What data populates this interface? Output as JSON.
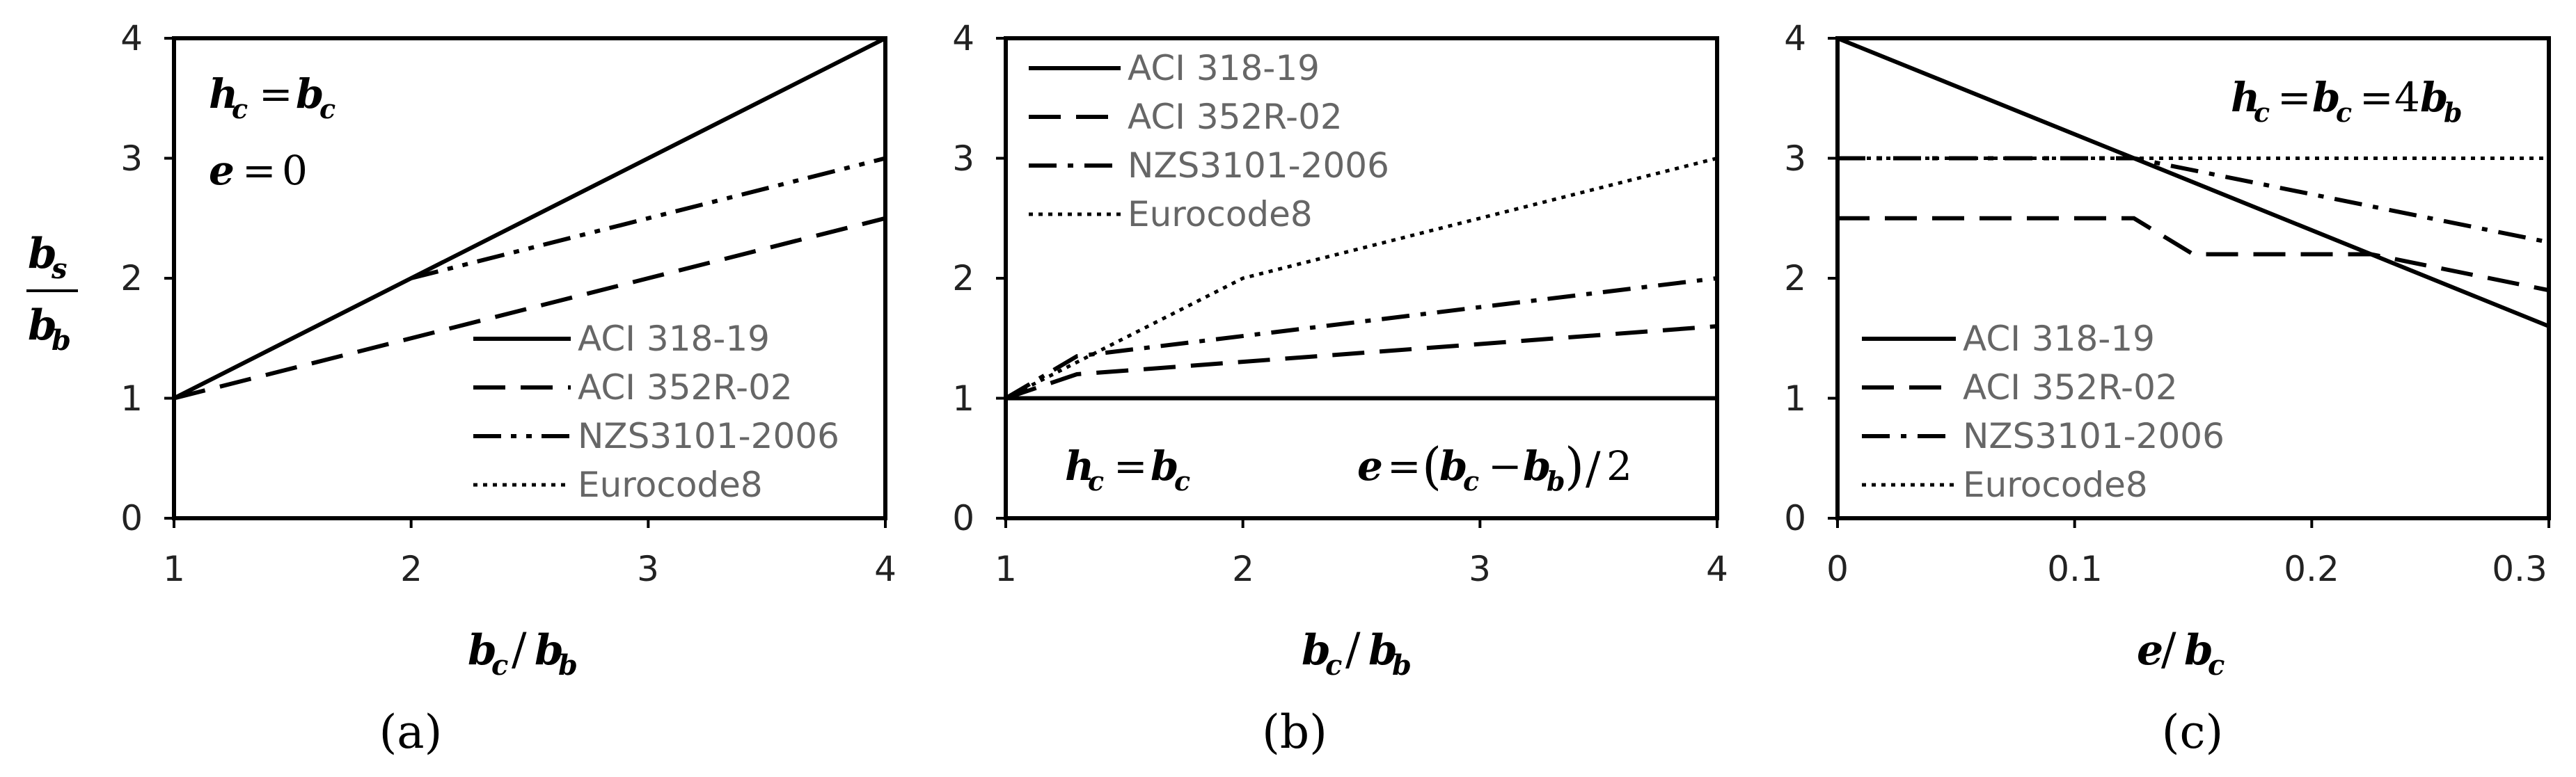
{
  "chart_data": [
    {
      "type": "line",
      "panel_label": "(a)",
      "xlabel": "b_c / b_b",
      "ylabel": "b_s / b_b",
      "xlim": [
        1,
        4
      ],
      "ylim": [
        0,
        4
      ],
      "xticks": [
        "1",
        "2",
        "3",
        "4"
      ],
      "yticks": [
        "0",
        "1",
        "2",
        "3",
        "4"
      ],
      "annotations": [
        "h_c = b_c",
        "e = 0"
      ],
      "legend_position": "bottom-right",
      "series": [
        {
          "name": "ACI 318-19",
          "style": "solid",
          "x": [
            1,
            4
          ],
          "y": [
            1,
            4
          ]
        },
        {
          "name": "ACI 352R-02",
          "style": "dashed",
          "x": [
            1,
            4
          ],
          "y": [
            1,
            2.5
          ]
        },
        {
          "name": "NZS3101-2006",
          "style": "dashdotdot",
          "x": [
            2,
            4
          ],
          "y": [
            2,
            3
          ]
        },
        {
          "name": "Eurocode8",
          "style": "dotted",
          "x": [
            1,
            2
          ],
          "y": [
            1,
            2
          ]
        }
      ]
    },
    {
      "type": "line",
      "panel_label": "(b)",
      "xlabel": "b_c / b_b",
      "ylabel": "",
      "xlim": [
        1,
        4
      ],
      "ylim": [
        0,
        4
      ],
      "xticks": [
        "1",
        "2",
        "3",
        "4"
      ],
      "yticks": [
        "0",
        "1",
        "2",
        "3",
        "4"
      ],
      "annotations": [
        "h_c = b_c",
        "e = (b_c − b_b)/2"
      ],
      "legend_position": "top-left",
      "series": [
        {
          "name": "ACI 318-19",
          "style": "solid",
          "x": [
            1,
            4
          ],
          "y": [
            1,
            1
          ]
        },
        {
          "name": "ACI 352R-02",
          "style": "dashed",
          "x": [
            1,
            1.3,
            4
          ],
          "y": [
            1,
            1.2,
            1.6
          ]
        },
        {
          "name": "NZS3101-2006",
          "style": "dashdot",
          "x": [
            1,
            1.3,
            4
          ],
          "y": [
            1,
            1.35,
            2
          ]
        },
        {
          "name": "Eurocode8",
          "style": "dotted",
          "x": [
            1,
            2,
            4
          ],
          "y": [
            1,
            2,
            3
          ]
        }
      ]
    },
    {
      "type": "line",
      "panel_label": "(c)",
      "xlabel": "e / b_c",
      "ylabel": "",
      "xlim": [
        0,
        0.3
      ],
      "ylim": [
        0,
        4
      ],
      "xticks": [
        "0",
        "0.1",
        "0.2",
        "0.3"
      ],
      "yticks": [
        "0",
        "1",
        "2",
        "3",
        "4"
      ],
      "annotations": [
        "h_c = b_c = 4b_b"
      ],
      "legend_position": "bottom-left",
      "series": [
        {
          "name": "ACI 318-19",
          "style": "solid",
          "x": [
            0,
            0.3
          ],
          "y": [
            4,
            1.6
          ]
        },
        {
          "name": "ACI 352R-02",
          "style": "dashed",
          "x": [
            0,
            0.125,
            0.15,
            0.225,
            0.3
          ],
          "y": [
            2.5,
            2.5,
            2.2,
            2.2,
            1.9
          ]
        },
        {
          "name": "NZS3101-2006",
          "style": "dashdot",
          "x": [
            0,
            0.125,
            0.3
          ],
          "y": [
            3,
            3,
            2.3
          ]
        },
        {
          "name": "Eurocode8",
          "style": "dotted",
          "x": [
            0,
            0.3
          ],
          "y": [
            3,
            3
          ]
        }
      ]
    }
  ],
  "legend_labels": [
    "ACI 318-19",
    "ACI 352R-02",
    "NZS3101-2006",
    "Eurocode8"
  ],
  "panel_a_legend_styles": [
    "solid",
    "dashed",
    "dashdotdot",
    "dotted"
  ],
  "panel_b_legend_styles": [
    "solid",
    "dashed",
    "dashdot",
    "dotted"
  ],
  "panel_c_legend_styles": [
    "solid",
    "dashed",
    "dashdot",
    "dotted"
  ]
}
